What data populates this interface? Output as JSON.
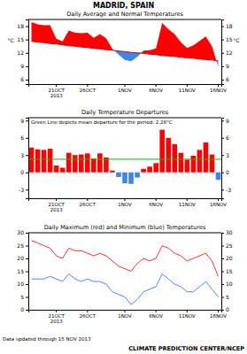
{
  "page": {
    "title": "MADRID, SPAIN",
    "note": "Data updated through 15 NOV 2013",
    "credit": "CLIMATE PREDICTION CENTER/NCEP"
  },
  "chart_data": [
    {
      "type": "area",
      "title": "Daily Average and Normal Temperatures",
      "ylabel": "°C",
      "categories": [
        null,
        null,
        null,
        null,
        "21OCT\n2013",
        null,
        null,
        null,
        null,
        "26OCT",
        null,
        null,
        null,
        null,
        null,
        "1NOV",
        null,
        null,
        null,
        null,
        "6NOV",
        null,
        null,
        null,
        null,
        "11NOV",
        null,
        null,
        null,
        null,
        "16NOV"
      ],
      "series": [
        {
          "type": "area",
          "color": "#ff0000",
          "values": [
            18.9,
            18.4,
            18.2,
            18.2,
            15.2,
            14.6,
            17.0,
            16.5,
            16.4,
            16.5,
            15.4,
            16.2,
            15.3,
            12.9,
            11.6,
            10.4,
            10.1,
            11.1,
            12.5,
            12.6,
            13.0,
            18.7,
            17.3,
            16.2,
            14.4,
            13.1,
            13.7,
            14.7,
            15.7,
            13.5,
            8.9
          ]
        },
        {
          "type": "line",
          "color": "#cc0000",
          "values": [
            14.6,
            14.4,
            14.3,
            14.1,
            14.0,
            13.8,
            13.6,
            13.5,
            13.3,
            13.2,
            13.0,
            12.9,
            12.7,
            12.6,
            12.4,
            12.3,
            12.1,
            12.0,
            11.9,
            11.7,
            11.6,
            11.4,
            11.3,
            11.2,
            11.0,
            10.9,
            10.8,
            10.6,
            10.5,
            10.4,
            10.2
          ]
        }
      ],
      "colors": [
        "#ff0000",
        "#3f86e6"
      ],
      "ylim": [
        5,
        19.5
      ],
      "yticks": [
        6,
        9,
        12,
        15,
        18
      ]
    },
    {
      "type": "bar",
      "title": "Daily Temperature Departures",
      "categories": [
        null,
        null,
        null,
        null,
        "21OCT\n2013",
        null,
        null,
        null,
        null,
        "26OCT",
        null,
        null,
        null,
        null,
        null,
        "1NOV",
        null,
        null,
        null,
        null,
        "6NOV",
        null,
        null,
        null,
        null,
        "11NOV",
        null,
        null,
        null,
        null,
        "16NOV"
      ],
      "values": [
        4.3,
        4.0,
        3.9,
        4.1,
        1.2,
        0.8,
        3.4,
        3.0,
        3.1,
        3.3,
        2.4,
        3.3,
        2.6,
        0.3,
        -0.8,
        -1.9,
        -2.0,
        -0.9,
        0.6,
        1.0,
        1.6,
        7.4,
        6.0,
        4.9,
        3.4,
        2.2,
        2.9,
        3.9,
        5.2,
        3.1,
        -1.3
      ],
      "colors": [
        "#ff0000",
        "#ff0000",
        "#ff0000",
        "#ff0000",
        "#ff0000",
        "#ff0000",
        "#ff0000",
        "#ff0000",
        "#ff0000",
        "#ff0000",
        "#ff0000",
        "#ff0000",
        "#ff0000",
        "#ff0000",
        "#3f86e6",
        "#3f86e6",
        "#3f86e6",
        "#3f86e6",
        "#ff0000",
        "#ff0000",
        "#ff0000",
        "#ff0000",
        "#ff0000",
        "#ff0000",
        "#ff0000",
        "#ff0000",
        "#ff0000",
        "#ff0000",
        "#ff0000",
        "#ff0000",
        "#3f86e6"
      ],
      "annotation": {
        "text": "Green Line depicts mean departure for the period: 2.28°C",
        "value": 2.28,
        "color": "#00c000"
      },
      "ylim": [
        -4.5,
        9.5
      ],
      "yticks": [
        -3,
        0,
        3,
        6,
        9
      ]
    },
    {
      "type": "line",
      "title": "Daily Maximum (red) and Minimum (blue) Temperatures",
      "categories": [
        null,
        null,
        null,
        null,
        "21OCT\n2013",
        null,
        null,
        null,
        null,
        "26OCT",
        null,
        null,
        null,
        null,
        null,
        "1NOV",
        null,
        null,
        null,
        null,
        "6NOV",
        null,
        null,
        null,
        null,
        "11NOV",
        null,
        null,
        null,
        null,
        "16NOV"
      ],
      "series": [
        {
          "color": "#ff3030",
          "values": [
            27,
            26,
            25,
            24,
            21,
            20,
            24,
            23,
            23,
            22,
            21,
            22,
            21,
            19,
            17,
            16,
            15,
            18,
            20,
            19,
            20,
            25,
            24,
            22,
            21,
            19,
            20,
            21,
            22,
            19,
            13
          ]
        },
        {
          "color": "#4f86ff",
          "values": [
            12,
            12,
            12,
            13,
            12,
            11,
            14,
            12,
            11,
            12,
            11,
            11,
            10,
            7,
            6,
            5,
            2,
            4,
            7,
            8,
            9,
            14,
            12,
            10,
            9,
            7,
            7,
            9,
            11,
            8,
            5
          ]
        }
      ],
      "ylim": [
        0,
        30
      ],
      "yticks": [
        0,
        5,
        10,
        15,
        20,
        25,
        30
      ]
    }
  ]
}
